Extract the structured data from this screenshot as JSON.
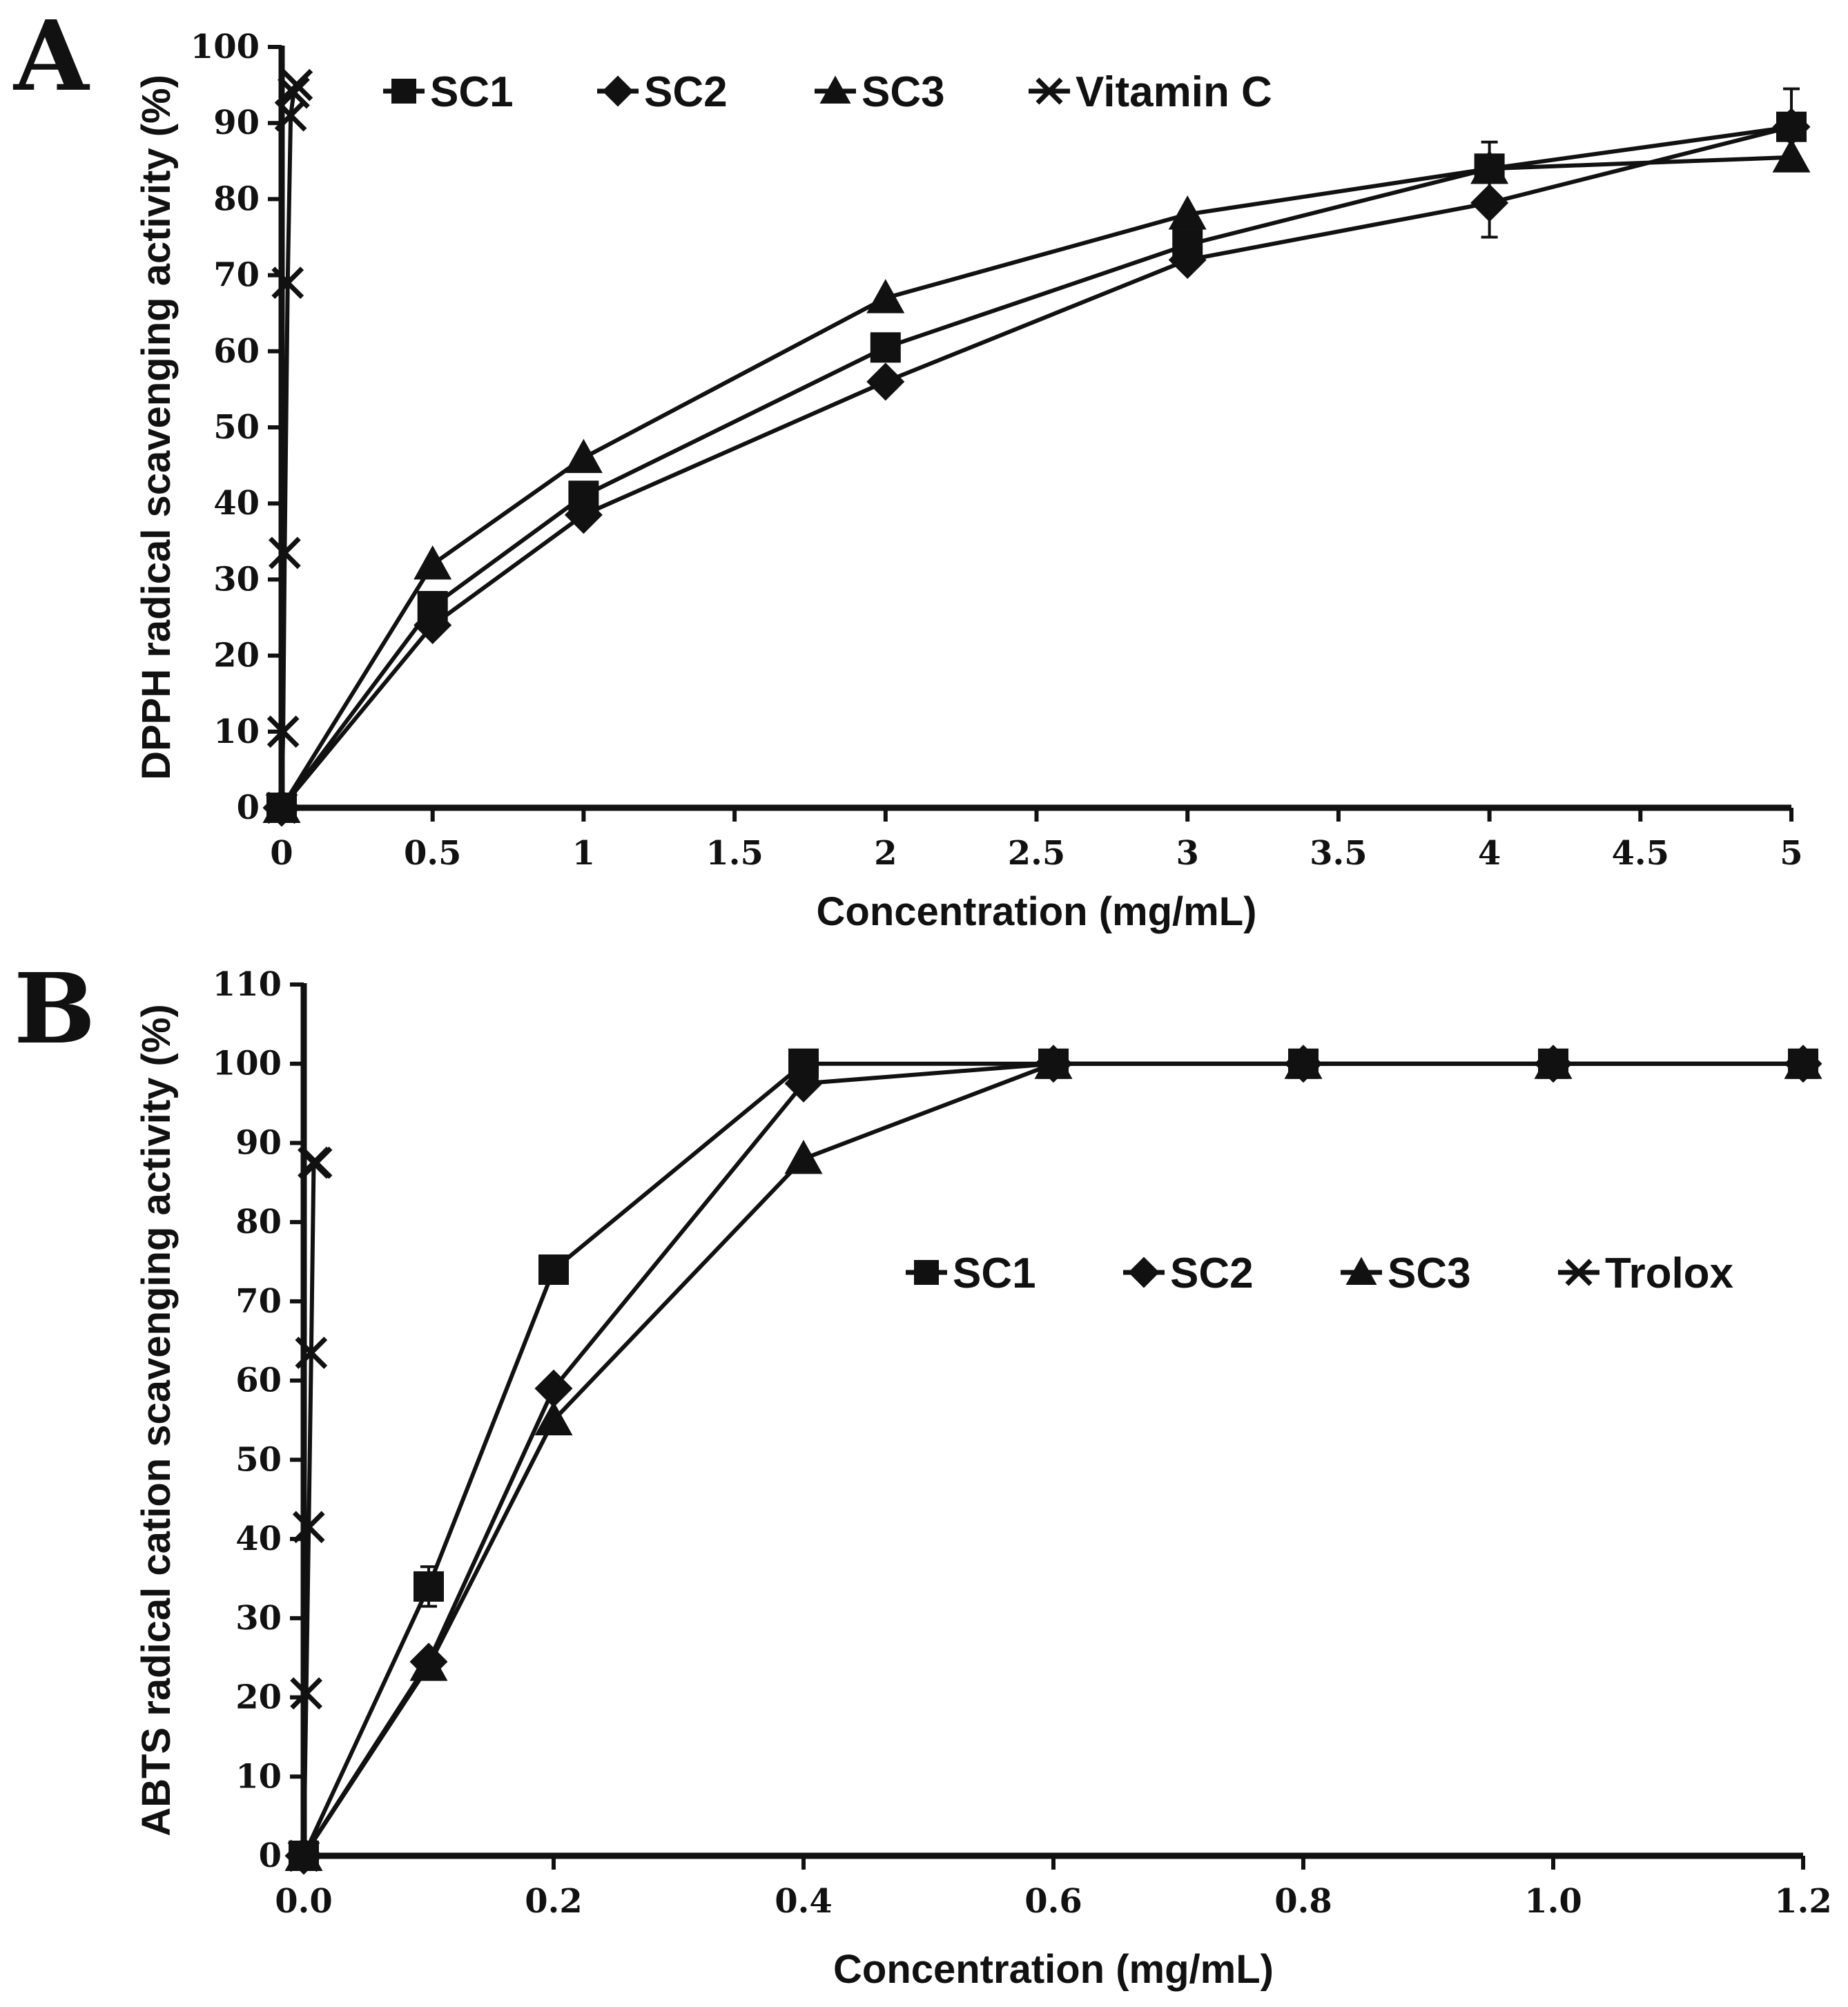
{
  "chart_data": [
    {
      "panel_label": "A",
      "type": "line",
      "xlabel": "Concentration (mg/mL)",
      "ylabel": "DPPH radical scavenging activity (%)",
      "xlim": [
        0,
        5
      ],
      "ylim": [
        0,
        100
      ],
      "xticks": [
        {
          "value": 0,
          "label": "0"
        },
        {
          "value": 0.5,
          "label": "0.5"
        },
        {
          "value": 1,
          "label": "1"
        },
        {
          "value": 1.5,
          "label": "1.5"
        },
        {
          "value": 2,
          "label": "2"
        },
        {
          "value": 2.5,
          "label": "2.5"
        },
        {
          "value": 3,
          "label": "3"
        },
        {
          "value": 3.5,
          "label": "3.5"
        },
        {
          "value": 4,
          "label": "4"
        },
        {
          "value": 4.5,
          "label": "4.5"
        },
        {
          "value": 5,
          "label": "5"
        }
      ],
      "yticks": [
        {
          "value": 0,
          "label": "0"
        },
        {
          "value": 10,
          "label": "10"
        },
        {
          "value": 20,
          "label": "20"
        },
        {
          "value": 30,
          "label": "30"
        },
        {
          "value": 40,
          "label": "40"
        },
        {
          "value": 50,
          "label": "50"
        },
        {
          "value": 60,
          "label": "60"
        },
        {
          "value": 70,
          "label": "70"
        },
        {
          "value": 80,
          "label": "80"
        },
        {
          "value": 90,
          "label": "90"
        },
        {
          "value": 100,
          "label": "100"
        }
      ],
      "grid": false,
      "legend_position": "top",
      "series": [
        {
          "name": "SC1",
          "marker": "square",
          "x": [
            0,
            0.5,
            1,
            2,
            3,
            4,
            5
          ],
          "y": [
            0,
            26.5,
            41,
            60.5,
            74,
            84,
            89.5
          ],
          "err": [
            0,
            0,
            0,
            0,
            0,
            3.5,
            5
          ]
        },
        {
          "name": "SC2",
          "marker": "diamond",
          "x": [
            0,
            0.5,
            1,
            2,
            3,
            4,
            5
          ],
          "y": [
            0,
            24,
            38.5,
            56,
            72,
            79.5,
            89.5
          ],
          "err": [
            0,
            0,
            0,
            0,
            0,
            4.5,
            0
          ]
        },
        {
          "name": "SC3",
          "marker": "triangle",
          "x": [
            0,
            0.5,
            1,
            2,
            3,
            4,
            5
          ],
          "y": [
            0,
            32,
            46,
            67,
            78,
            84,
            85.5
          ],
          "err": [
            0,
            0,
            0,
            0,
            0,
            0,
            0
          ]
        },
        {
          "name": "Vitamin C",
          "marker": "x",
          "x": [
            0,
            0.005,
            0.01,
            0.02,
            0.03,
            0.04,
            0.05
          ],
          "y": [
            0,
            10,
            33.5,
            69,
            91,
            94,
            95
          ],
          "err": [
            0,
            0,
            0,
            0,
            0,
            0,
            0
          ]
        }
      ]
    },
    {
      "panel_label": "B",
      "type": "line",
      "xlabel": "Concentration (mg/mL)",
      "ylabel": "ABTS radical cation  scavenging activity (%)",
      "xlim": [
        0,
        1.2
      ],
      "ylim": [
        0,
        110
      ],
      "xticks": [
        {
          "value": 0,
          "label": "0.0"
        },
        {
          "value": 0.2,
          "label": "0.2"
        },
        {
          "value": 0.4,
          "label": "0.4"
        },
        {
          "value": 0.6,
          "label": "0.6"
        },
        {
          "value": 0.8,
          "label": "0.8"
        },
        {
          "value": 1.0,
          "label": "1.0"
        },
        {
          "value": 1.2,
          "label": "1.2"
        }
      ],
      "yticks": [
        {
          "value": 0,
          "label": "0"
        },
        {
          "value": 10,
          "label": "10"
        },
        {
          "value": 20,
          "label": "20"
        },
        {
          "value": 30,
          "label": "30"
        },
        {
          "value": 40,
          "label": "40"
        },
        {
          "value": 50,
          "label": "50"
        },
        {
          "value": 60,
          "label": "60"
        },
        {
          "value": 70,
          "label": "70"
        },
        {
          "value": 80,
          "label": "80"
        },
        {
          "value": 90,
          "label": "90"
        },
        {
          "value": 100,
          "label": "100"
        },
        {
          "value": 110,
          "label": "110"
        }
      ],
      "grid": false,
      "legend_position": "center-right",
      "series": [
        {
          "name": "SC1",
          "marker": "square",
          "x": [
            0,
            0.1,
            0.2,
            0.4,
            0.6,
            0.8,
            1.0,
            1.2
          ],
          "y": [
            0,
            34,
            74,
            100,
            100,
            100,
            100,
            100
          ],
          "err": [
            0,
            2.5,
            0,
            0,
            0,
            0,
            0,
            0
          ]
        },
        {
          "name": "SC2",
          "marker": "diamond",
          "x": [
            0,
            0.1,
            0.2,
            0.4,
            0.6,
            0.8,
            1.0,
            1.2
          ],
          "y": [
            0,
            24.5,
            59,
            97.5,
            100,
            100,
            100,
            100
          ],
          "err": [
            0,
            0,
            0,
            0,
            0,
            0,
            0,
            0
          ]
        },
        {
          "name": "SC3",
          "marker": "triangle",
          "x": [
            0,
            0.1,
            0.2,
            0.4,
            0.6,
            0.8,
            1.0,
            1.2
          ],
          "y": [
            0,
            24,
            55,
            88,
            100,
            100,
            100,
            100
          ],
          "err": [
            0,
            0,
            0,
            0,
            0,
            0,
            0,
            0
          ]
        },
        {
          "name": "Trolox",
          "marker": "x",
          "x": [
            0,
            0.002,
            0.004,
            0.006,
            0.008,
            0.01
          ],
          "y": [
            0,
            20.5,
            41.5,
            63.5,
            87.5,
            87.5
          ],
          "err": [
            0,
            0,
            0,
            0,
            0,
            0
          ]
        }
      ]
    }
  ]
}
